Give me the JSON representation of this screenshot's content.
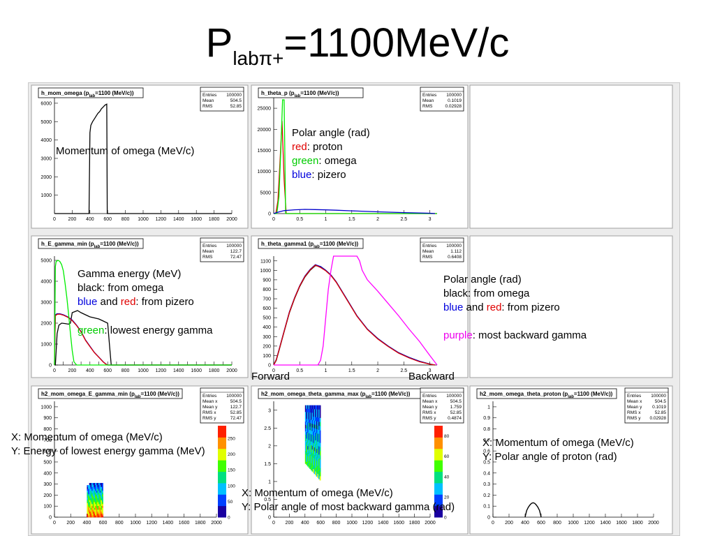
{
  "slide": {
    "title_main": "P",
    "title_sub": "labπ+",
    "title_rest": "=1100MeV/c"
  },
  "annotations": {
    "a1": "Momentum of omega (MeV/c)",
    "a2_l1": "Polar angle (rad)",
    "a2_red": "red",
    "a2_red_rest": ": proton",
    "a2_green": "green",
    "a2_green_rest": ": omega",
    "a2_blue": "blue",
    "a2_blue_rest": ": pizero",
    "a3_l1": "Gamma energy (MeV)",
    "a3_l2": "black: from omega",
    "a3_blue": "blue",
    "a3_and": " and ",
    "a3_red": "red",
    "a3_rest": ": from pizero",
    "a3_green": "green",
    "a3_green_rest": ": lowest energy gamma",
    "a4_l1": "Polar angle (rad)",
    "a4_l2": "black: from omega",
    "a4_blue": "blue",
    "a4_and": " and ",
    "a4_red": "red",
    "a4_rest": ": from pizero",
    "a4_purple": "purple",
    "a4_purple_rest": ": most backward gamma",
    "forward": "Forward",
    "backward": "Backward",
    "a5_l1": "X: Momentum of omega (MeV/c)",
    "a5_l2": "Y: Energy of lowest energy gamma (MeV)",
    "a6_l1": "X: Momentum of omega (MeV/c)",
    "a6_l2": "Y: Polar angle of most backward gamma (rad)",
    "a7_l1": "X: Momentum of omega (MeV/c)",
    "a7_l2": "Y: Polar angle of proton (rad)"
  },
  "colors": {
    "black": "#000000",
    "red": "#e00000",
    "green": "#00ee00",
    "blue": "#0000cc",
    "purple": "#ff00ff"
  },
  "chart_data": [
    {
      "type": "line",
      "id": "p1",
      "title": "h_mom_omega (p",
      "title_sub": "lab",
      "title_post": "=1100 (MeV/c))",
      "stats": [
        [
          "Entries",
          "100000"
        ],
        [
          "Mean",
          "504.5"
        ],
        [
          "RMS",
          "52.85"
        ]
      ],
      "xlim": [
        0,
        2000
      ],
      "ylim": [
        0,
        6300
      ],
      "xticks": [
        0,
        200,
        400,
        600,
        800,
        1000,
        1200,
        1400,
        1600,
        1800,
        2000
      ],
      "yticks": [
        1000,
        2000,
        3000,
        4000,
        5000,
        6000
      ],
      "series": [
        {
          "color": "black",
          "x": [
            0,
            390,
            400,
            410,
            430,
            450,
            470,
            490,
            510,
            530,
            550,
            570,
            590,
            595,
            600,
            2000
          ],
          "y": [
            0,
            0,
            4400,
            4800,
            5000,
            5150,
            5300,
            5450,
            5550,
            5700,
            5800,
            5900,
            5950,
            0,
            0,
            0
          ]
        }
      ]
    },
    {
      "type": "line",
      "id": "p2",
      "title": "h_theta_p (p",
      "title_sub": "lab",
      "title_post": "=1100 (MeV/c))",
      "stats": [
        [
          "Entries",
          "100000"
        ],
        [
          "Mean",
          "0.1019"
        ],
        [
          "RMS",
          "0.02928"
        ]
      ],
      "xlim": [
        0,
        3.14
      ],
      "ylim": [
        0,
        27500
      ],
      "xticks": [
        0,
        0.5,
        1,
        1.5,
        2,
        2.5,
        3
      ],
      "yticks": [
        0,
        5000,
        10000,
        15000,
        20000,
        25000
      ],
      "series": [
        {
          "color": "red",
          "x": [
            0,
            0.04,
            0.08,
            0.12,
            0.16,
            0.2,
            0.24,
            3.14
          ],
          "y": [
            0,
            0,
            3000,
            12000,
            22000,
            8000,
            0,
            0
          ]
        },
        {
          "color": "green",
          "x": [
            0,
            0.06,
            0.1,
            0.14,
            0.17,
            0.2,
            0.23,
            3.14
          ],
          "y": [
            0,
            0,
            4000,
            16000,
            27000,
            27000,
            0,
            0
          ]
        },
        {
          "color": "blue",
          "x": [
            0,
            0.05,
            0.1,
            0.2,
            0.4,
            0.6,
            0.8,
            1,
            1.2,
            1.5,
            2,
            2.5,
            3,
            3.1
          ],
          "y": [
            0,
            200,
            400,
            700,
            900,
            1000,
            950,
            880,
            800,
            650,
            420,
            230,
            80,
            0
          ]
        }
      ]
    },
    {
      "type": "line",
      "id": "p3",
      "title": "h_E_gamma_min (p",
      "title_sub": "lab",
      "title_post": "=1100 (MeV/c))",
      "stats": [
        [
          "Entries",
          "100000"
        ],
        [
          "Mean",
          "122.7"
        ],
        [
          "RMS",
          "72.47"
        ]
      ],
      "xlim": [
        0,
        2000
      ],
      "ylim": [
        0,
        5200
      ],
      "xticks": [
        0,
        100,
        200,
        300,
        400,
        500,
        600,
        700,
        800,
        900,
        1000,
        1100,
        1200,
        1300,
        1400,
        1500,
        1600,
        1700,
        1800,
        1900,
        2000
      ],
      "xticklabels": [
        0,
        200,
        400,
        600,
        800,
        1000,
        1200,
        1400,
        1600,
        1800,
        2000
      ],
      "yticks": [
        0,
        1000,
        2000,
        3000,
        4000,
        5000
      ],
      "series": [
        {
          "color": "black",
          "x": [
            0,
            10,
            30,
            50,
            80,
            120,
            160,
            180,
            200,
            230,
            260,
            300,
            350,
            400,
            450,
            500,
            550,
            600,
            620,
            640,
            700,
            2000
          ],
          "y": [
            0,
            0,
            1500,
            1900,
            2000,
            1980,
            1950,
            2000,
            2500,
            2550,
            2600,
            2500,
            2400,
            2300,
            2250,
            2200,
            2100,
            2000,
            1000,
            0,
            0,
            0
          ]
        },
        {
          "color": "blue",
          "x": [
            0,
            10,
            30,
            60,
            100,
            150,
            200,
            250,
            300,
            350,
            400,
            450,
            500,
            550,
            580,
            600,
            2000
          ],
          "y": [
            0,
            2400,
            2450,
            2450,
            2400,
            2300,
            2150,
            1900,
            1600,
            1200,
            900,
            600,
            380,
            150,
            50,
            0,
            0
          ]
        },
        {
          "color": "red",
          "x": [
            0,
            10,
            30,
            60,
            100,
            150,
            200,
            250,
            300,
            350,
            400,
            450,
            500,
            550,
            580,
            600,
            2000
          ],
          "y": [
            0,
            2350,
            2420,
            2430,
            2380,
            2280,
            2120,
            1880,
            1580,
            1180,
            880,
            590,
            370,
            140,
            40,
            0,
            0
          ]
        },
        {
          "color": "green",
          "x": [
            0,
            10,
            20,
            40,
            60,
            80,
            100,
            120,
            140,
            160,
            180,
            200,
            220,
            250,
            2000
          ],
          "y": [
            0,
            4700,
            4950,
            5000,
            4950,
            4800,
            4500,
            3900,
            3200,
            2400,
            1500,
            700,
            150,
            0,
            0
          ]
        }
      ]
    },
    {
      "type": "line",
      "id": "p4",
      "title": "h_theta_gamma1 (p",
      "title_sub": "lab",
      "title_post": "=1100 (MeV/c))",
      "stats": [
        [
          "Entries",
          "100000"
        ],
        [
          "Mean",
          "1.112"
        ],
        [
          "RMS",
          "0.6408"
        ]
      ],
      "xlim": [
        0,
        3.14
      ],
      "ylim": [
        0,
        1150
      ],
      "xticks": [
        0,
        0.5,
        1,
        1.5,
        2,
        2.5,
        3
      ],
      "yticks": [
        0,
        100,
        200,
        300,
        400,
        500,
        600,
        700,
        800,
        900,
        1000,
        1100
      ],
      "series": [
        {
          "color": "black",
          "x": [
            0,
            0.05,
            0.1,
            0.2,
            0.3,
            0.4,
            0.5,
            0.6,
            0.7,
            0.8,
            0.9,
            1,
            1.1,
            1.2,
            1.4,
            1.6,
            1.8,
            2,
            2.2,
            2.4,
            2.6,
            2.8,
            3,
            3.1
          ],
          "y": [
            0,
            50,
            150,
            350,
            550,
            700,
            830,
            930,
            1000,
            1050,
            1040,
            1000,
            950,
            880,
            700,
            520,
            380,
            280,
            200,
            130,
            80,
            40,
            10,
            0
          ]
        },
        {
          "color": "blue",
          "x": [
            0,
            0.05,
            0.1,
            0.2,
            0.3,
            0.4,
            0.5,
            0.6,
            0.7,
            0.8,
            0.9,
            1,
            1.1,
            1.2,
            1.4,
            1.6,
            1.8,
            2,
            2.2,
            2.4,
            2.6,
            2.8,
            3,
            3.1
          ],
          "y": [
            0,
            60,
            160,
            360,
            560,
            710,
            840,
            940,
            1010,
            1060,
            1040,
            1000,
            950,
            880,
            700,
            520,
            380,
            280,
            200,
            130,
            80,
            40,
            10,
            0
          ]
        },
        {
          "color": "red",
          "x": [
            0,
            0.05,
            0.1,
            0.2,
            0.3,
            0.4,
            0.5,
            0.6,
            0.7,
            0.8,
            0.9,
            1,
            1.1,
            1.2,
            1.4,
            1.6,
            1.8,
            2,
            2.2,
            2.4,
            2.6,
            2.8,
            3,
            3.1
          ],
          "y": [
            0,
            55,
            155,
            355,
            555,
            705,
            835,
            935,
            1005,
            1055,
            1030,
            995,
            945,
            875,
            695,
            515,
            375,
            275,
            195,
            125,
            75,
            35,
            8,
            0
          ]
        },
        {
          "color": "purple",
          "x": [
            0,
            0.85,
            0.9,
            0.95,
            1,
            1.05,
            1.1,
            1.15,
            1.2,
            1.3,
            1.5,
            1.6,
            1.65,
            1.7,
            1.8,
            2,
            2.2,
            2.4,
            2.6,
            2.8,
            3,
            3.14
          ],
          "y": [
            0,
            0,
            50,
            200,
            500,
            800,
            1000,
            1150,
            1150,
            1150,
            1150,
            1150,
            1100,
            1000,
            900,
            780,
            650,
            520,
            380,
            250,
            100,
            0
          ]
        }
      ]
    },
    {
      "type": "heatmap",
      "id": "p5",
      "title": "h2_mom_omega_E_gamma_min (p",
      "title_sub": "lab",
      "title_post": "=1100 (MeV/c))",
      "stats": [
        [
          "Entries",
          "100000"
        ],
        [
          "Mean x",
          "504.5"
        ],
        [
          "Mean y",
          "122.7"
        ],
        [
          "RMS x",
          "52.85"
        ],
        [
          "RMS y",
          "72.47"
        ]
      ],
      "xlim": [
        0,
        2000
      ],
      "ylim": [
        0,
        1050
      ],
      "xticks": [
        0,
        200,
        400,
        600,
        800,
        1000,
        1200,
        1400,
        1600,
        1800,
        2000
      ],
      "yticks": [
        0,
        100,
        200,
        300,
        400,
        500,
        600,
        700,
        800,
        900,
        1000
      ],
      "zticks": [
        0,
        50,
        100,
        150,
        200,
        250
      ],
      "zmax": 290,
      "region": {
        "shape": "box",
        "x0": 400,
        "x1": 600,
        "y0": 0,
        "y1": 310
      }
    },
    {
      "type": "heatmap",
      "id": "p6",
      "title": "h2_mom_omega_theta_gamma_max (p",
      "title_sub": "lab",
      "title_post": "=1100 (MeV/c))",
      "stats": [
        [
          "Entries",
          "100000"
        ],
        [
          "Mean x",
          "504.5"
        ],
        [
          "Mean y",
          "1.759"
        ],
        [
          "RMS x",
          "52.85"
        ],
        [
          "RMS y",
          "0.4874"
        ]
      ],
      "xlim": [
        0,
        2000
      ],
      "ylim": [
        0,
        3.25
      ],
      "xticks": [
        0,
        200,
        400,
        600,
        800,
        1000,
        1200,
        1400,
        1600,
        1800,
        2000
      ],
      "yticks": [
        0,
        0.5,
        1,
        1.5,
        2,
        2.5,
        3
      ],
      "zticks": [
        0,
        20,
        40,
        60,
        80
      ],
      "zmax": 90,
      "region": {
        "shape": "slant",
        "x0": 400,
        "x1": 600,
        "y0": 1.0,
        "y1": 3.14
      }
    },
    {
      "type": "scatter",
      "id": "p7",
      "title": "h2_mom_omega_theta_proton (p",
      "title_sub": "lab",
      "title_post": "=1100 (MeV/c))",
      "stats": [
        [
          "Entries",
          "100000"
        ],
        [
          "Mean x",
          "504.5"
        ],
        [
          "Mean y",
          "0.1019"
        ],
        [
          "RMS x",
          "52.85"
        ],
        [
          "RMS y",
          "0.02928"
        ]
      ],
      "xlim": [
        0,
        2000
      ],
      "ylim": [
        0,
        1.05
      ],
      "xticks": [
        0,
        200,
        400,
        600,
        800,
        1000,
        1200,
        1400,
        1600,
        1800,
        2000
      ],
      "yticks": [
        0,
        0.1,
        0.2,
        0.3,
        0.4,
        0.5,
        0.6,
        0.7,
        0.8,
        0.9,
        1
      ],
      "series": [
        {
          "color": "black",
          "x": [
            400,
            410,
            420,
            440,
            460,
            480,
            500,
            520,
            540,
            560,
            580,
            590,
            600
          ],
          "y": [
            0,
            0.03,
            0.06,
            0.09,
            0.11,
            0.125,
            0.13,
            0.125,
            0.11,
            0.09,
            0.06,
            0.03,
            0
          ]
        }
      ]
    }
  ]
}
